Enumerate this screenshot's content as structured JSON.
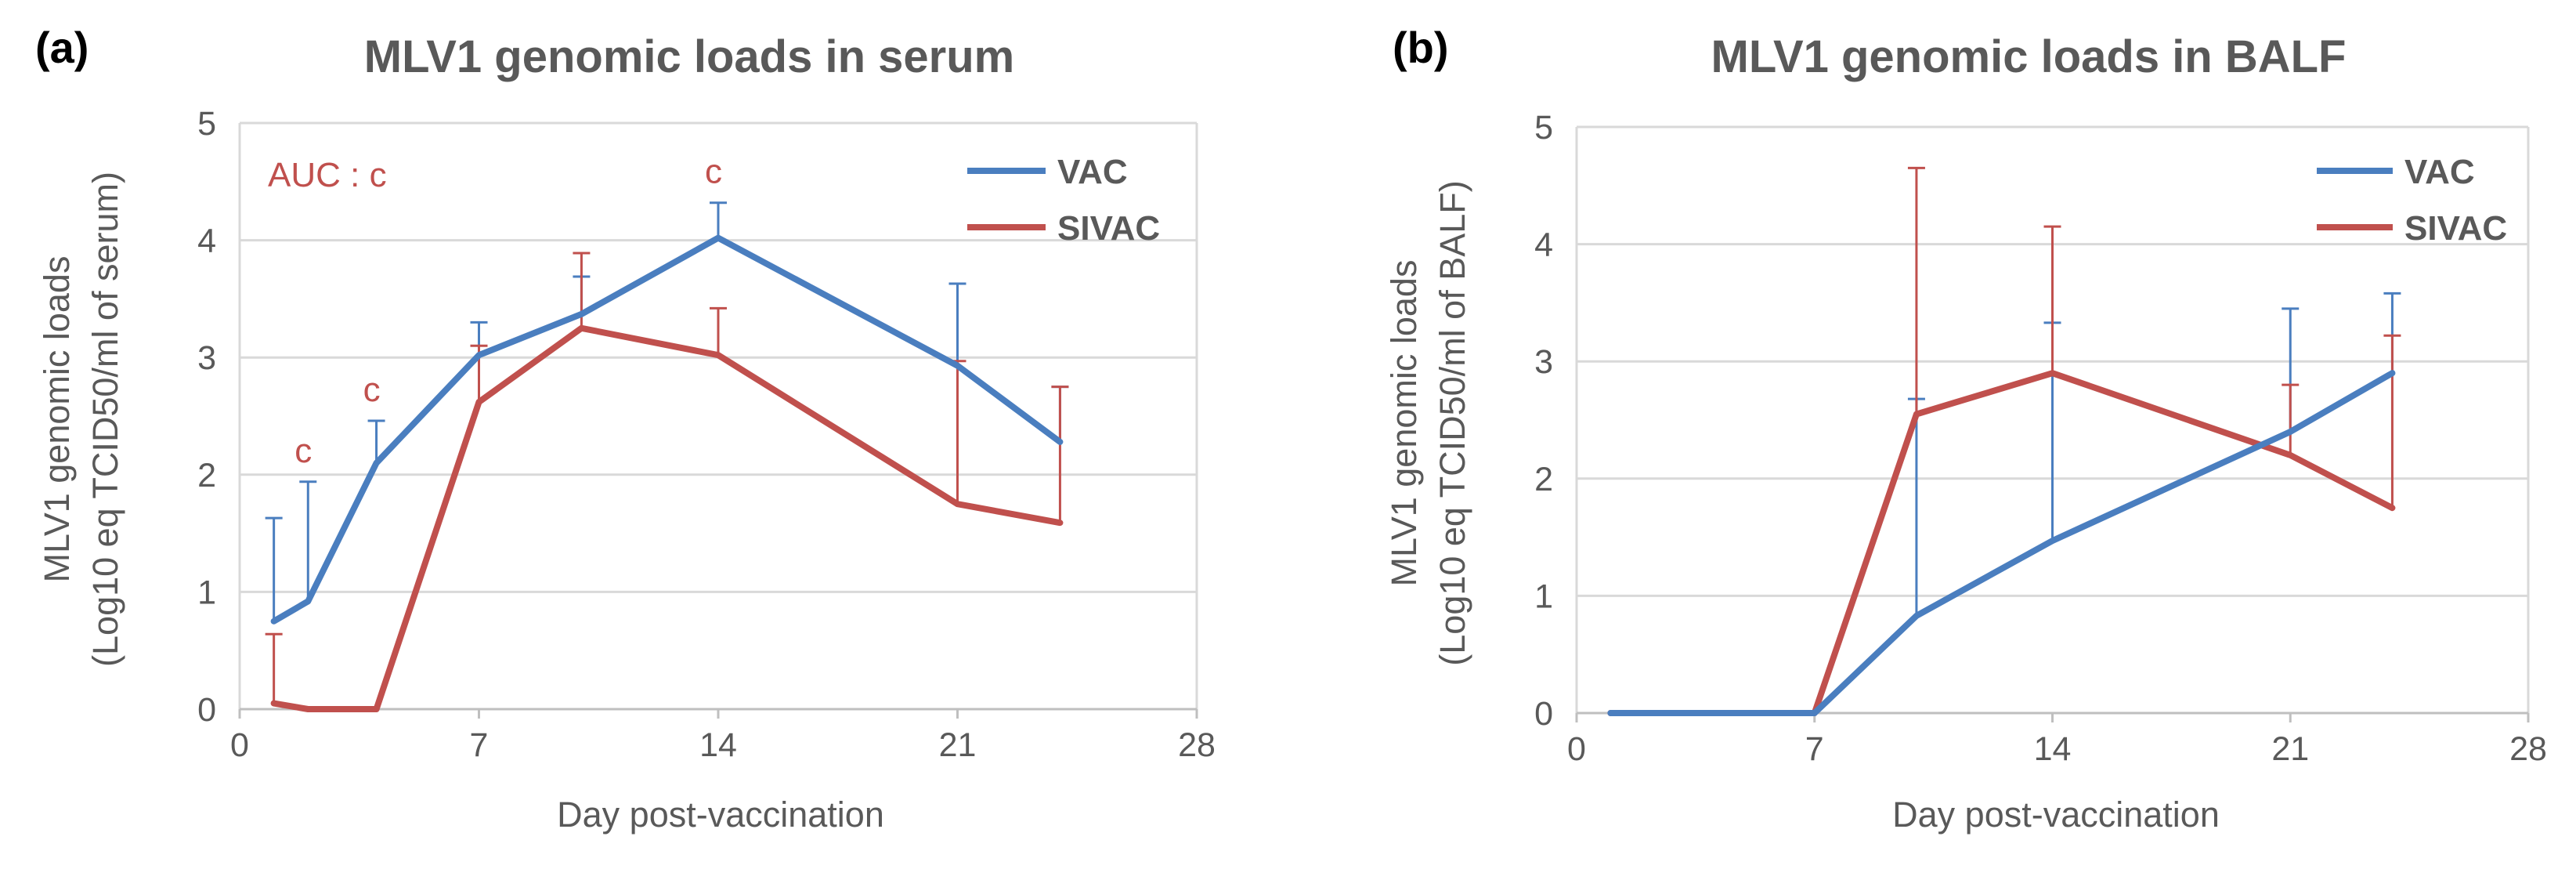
{
  "chart_data": [
    {
      "type": "line",
      "panel_label": "(a)",
      "title": "MLV1 genomic loads in serum",
      "xlabel": "Day post-vaccination",
      "ylabel_line1": "MLV1 genomic loads",
      "ylabel_line2": "(Log10 eq TCID50/ml of serum)",
      "xlim": [
        0,
        28
      ],
      "ylim": [
        0,
        5
      ],
      "xticks": [
        "0",
        "7",
        "14",
        "21",
        "28"
      ],
      "yticks": [
        "0",
        "1",
        "2",
        "3",
        "4",
        "5"
      ],
      "grid": true,
      "legend_position": "top-right",
      "auc_annotation": "AUC : c",
      "significance": [
        {
          "x": 2,
          "label": "c"
        },
        {
          "x": 4,
          "label": "c"
        },
        {
          "x": 14,
          "label": "c"
        }
      ],
      "series": [
        {
          "name": "VAC",
          "color": "#4a7ebf",
          "x": [
            1,
            2,
            4,
            7,
            10,
            14,
            21,
            24
          ],
          "y": [
            0.75,
            0.92,
            2.1,
            3.02,
            3.37,
            4.02,
            2.93,
            2.28
          ],
          "err": [
            0.88,
            1.02,
            0.36,
            0.28,
            0.32,
            0.3,
            0.7,
            0.47
          ]
        },
        {
          "name": "SIVAC",
          "color": "#c0504d",
          "x": [
            1,
            2,
            4,
            7,
            10,
            14,
            21,
            24
          ],
          "y": [
            0.05,
            0.0,
            0.0,
            2.62,
            3.25,
            3.02,
            1.75,
            1.59
          ],
          "err": [
            0.59,
            0,
            0,
            0.48,
            0.64,
            0.4,
            1.22,
            1.16
          ]
        }
      ]
    },
    {
      "type": "line",
      "panel_label": "(b)",
      "title": "MLV1 genomic loads in BALF",
      "xlabel": "Day post-vaccination",
      "ylabel_line1": "MLV1 genomic loads",
      "ylabel_line2": "(Log10 eq TCID50/ml of BALF)",
      "xlim": [
        0,
        28
      ],
      "ylim": [
        0,
        5
      ],
      "xticks": [
        "0",
        "7",
        "14",
        "21",
        "28"
      ],
      "yticks": [
        "0",
        "1",
        "2",
        "3",
        "4",
        "5"
      ],
      "grid": true,
      "legend_position": "top-right",
      "series": [
        {
          "name": "VAC",
          "color": "#4a7ebf",
          "x": [
            1,
            7,
            10,
            14,
            21,
            24
          ],
          "y": [
            0.0,
            0.0,
            0.83,
            1.47,
            2.4,
            2.9
          ],
          "err": [
            0,
            0,
            1.85,
            1.86,
            1.05,
            0.68
          ]
        },
        {
          "name": "SIVAC",
          "color": "#c0504d",
          "x": [
            1,
            7,
            10,
            14,
            21,
            24
          ],
          "y": [
            0.0,
            0.0,
            2.55,
            2.9,
            2.2,
            1.75
          ],
          "err": [
            0,
            0,
            2.1,
            1.25,
            0.6,
            1.47
          ]
        }
      ]
    }
  ]
}
